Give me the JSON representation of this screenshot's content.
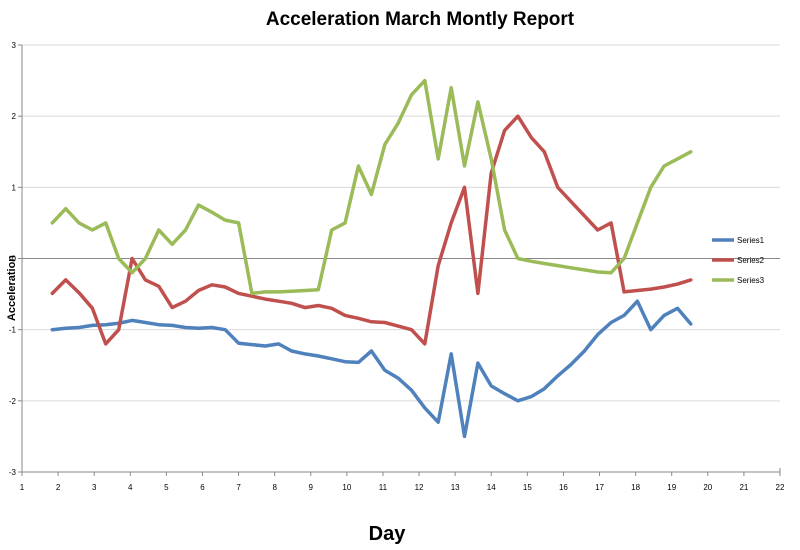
{
  "chart_data": {
    "type": "line",
    "title": "Acceleration March Montly Report",
    "xlabel": "Day",
    "ylabel": "Acceleration",
    "xlim": [
      1,
      22
    ],
    "ylim": [
      -3,
      3
    ],
    "x_ticks": [
      "1",
      "2",
      "3",
      "4",
      "5",
      "6",
      "7",
      "8",
      "9",
      "10",
      "11",
      "12",
      "13",
      "14",
      "15",
      "16",
      "17",
      "18",
      "19",
      "20",
      "21",
      "22"
    ],
    "y_ticks": [
      "3",
      "2",
      "1",
      "0",
      "-1",
      "-2",
      "-3"
    ],
    "grid": "horizontal",
    "legend_position": "right",
    "x": [
      1.84,
      2.21,
      2.58,
      2.95,
      3.32,
      3.68,
      4.05,
      4.42,
      4.79,
      5.16,
      5.53,
      5.89,
      6.26,
      6.63,
      7.0,
      7.37,
      7.74,
      8.11,
      8.47,
      8.84,
      9.21,
      9.58,
      9.95,
      10.32,
      10.68,
      11.05,
      11.42,
      11.79,
      12.16,
      12.53,
      12.89,
      13.26,
      13.63,
      14.0,
      14.37,
      14.74,
      15.11,
      15.47,
      15.84,
      16.21,
      16.58,
      16.95,
      17.32,
      17.68,
      18.05,
      18.42,
      18.79,
      19.16,
      19.53
    ],
    "series": [
      {
        "name": "Series1",
        "color": "#4f81bd",
        "values": [
          -1.0,
          -0.98,
          -0.97,
          -0.94,
          -0.93,
          -0.91,
          -0.87,
          -0.9,
          -0.93,
          -0.94,
          -0.97,
          -0.98,
          -0.97,
          -1.0,
          -1.19,
          -1.21,
          -1.23,
          -1.2,
          -1.3,
          -1.34,
          -1.37,
          -1.41,
          -1.45,
          -1.46,
          -1.3,
          -1.57,
          -1.68,
          -1.85,
          -2.1,
          -2.3,
          -1.34,
          -2.5,
          -1.47,
          -1.79,
          -1.9,
          -2.0,
          -1.94,
          -1.83,
          -1.65,
          -1.49,
          -1.3,
          -1.07,
          -0.9,
          -0.8,
          -0.6,
          -1.0,
          -0.8,
          -0.7,
          -0.92
        ]
      },
      {
        "name": "Series2",
        "color": "#c0504d",
        "values": [
          -0.49,
          -0.3,
          -0.48,
          -0.7,
          -1.2,
          -1.0,
          0.0,
          -0.3,
          -0.39,
          -0.69,
          -0.6,
          -0.45,
          -0.37,
          -0.4,
          -0.49,
          -0.53,
          -0.57,
          -0.6,
          -0.63,
          -0.69,
          -0.66,
          -0.7,
          -0.8,
          -0.84,
          -0.89,
          -0.9,
          -0.95,
          -1.0,
          -1.2,
          -0.1,
          0.5,
          1.0,
          -0.49,
          1.2,
          1.8,
          2.0,
          1.7,
          1.5,
          1.0,
          0.8,
          0.6,
          0.4,
          0.5,
          -0.47,
          -0.45,
          -0.43,
          -0.4,
          -0.36,
          -0.3
        ]
      },
      {
        "name": "Series3",
        "color": "#9bbb59",
        "values": [
          0.5,
          0.7,
          0.5,
          0.4,
          0.5,
          0.0,
          -0.2,
          0.0,
          0.4,
          0.2,
          0.4,
          0.75,
          0.65,
          0.54,
          0.5,
          -0.49,
          -0.47,
          -0.47,
          -0.46,
          -0.45,
          -0.44,
          0.4,
          0.5,
          1.3,
          0.9,
          1.6,
          1.9,
          2.3,
          2.5,
          1.4,
          2.4,
          1.3,
          2.2,
          1.4,
          0.4,
          0.0,
          -0.04,
          -0.07,
          -0.1,
          -0.13,
          -0.16,
          -0.19,
          -0.2,
          0.0,
          0.5,
          1.0,
          1.3,
          1.4,
          1.5
        ]
      }
    ]
  }
}
